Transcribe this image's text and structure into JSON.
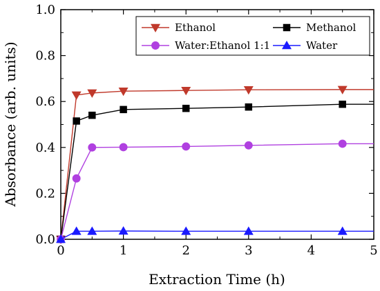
{
  "chart_data": {
    "type": "line",
    "xlabel": "Extraction Time (h)",
    "ylabel": "Absorbance (arb. units)",
    "xlim": [
      0,
      5
    ],
    "ylim": [
      0,
      1.0
    ],
    "x_ticks": [
      0,
      1,
      2,
      3,
      4,
      5
    ],
    "y_ticks": [
      0.0,
      0.2,
      0.4,
      0.6,
      0.8,
      1.0
    ],
    "x_tick_labels": [
      "0",
      "1",
      "2",
      "3",
      "4",
      "5"
    ],
    "y_tick_labels": [
      "0.0",
      "0.2",
      "0.4",
      "0.6",
      "0.8",
      "1.0"
    ],
    "grid": false,
    "legend_position": "top-right",
    "series": [
      {
        "name": "Ethanol",
        "color": "#c0392b",
        "marker": "triangle-down",
        "x": [
          0,
          0.25,
          0.5,
          1,
          2,
          3,
          4.5,
          5
        ],
        "y": [
          0,
          0.628,
          0.637,
          0.645,
          0.648,
          0.651,
          0.652,
          0.652
        ]
      },
      {
        "name": "Methanol",
        "color": "#000000",
        "marker": "square",
        "x": [
          0,
          0.25,
          0.5,
          1,
          2,
          3,
          4.5,
          5
        ],
        "y": [
          0,
          0.515,
          0.54,
          0.565,
          0.57,
          0.576,
          0.588,
          0.588
        ]
      },
      {
        "name": "Water:Ethanol 1:1",
        "color": "#b040e0",
        "marker": "circle",
        "x": [
          0,
          0.25,
          0.5,
          1,
          2,
          3,
          4.5,
          5
        ],
        "y": [
          0,
          0.265,
          0.4,
          0.401,
          0.404,
          0.409,
          0.416,
          0.416
        ]
      },
      {
        "name": "Water",
        "color": "#1a1aff",
        "marker": "triangle-up",
        "x": [
          0,
          0.25,
          0.5,
          1,
          2,
          3,
          4.5,
          5
        ],
        "y": [
          0,
          0.035,
          0.035,
          0.036,
          0.035,
          0.035,
          0.035,
          0.035
        ]
      }
    ]
  }
}
